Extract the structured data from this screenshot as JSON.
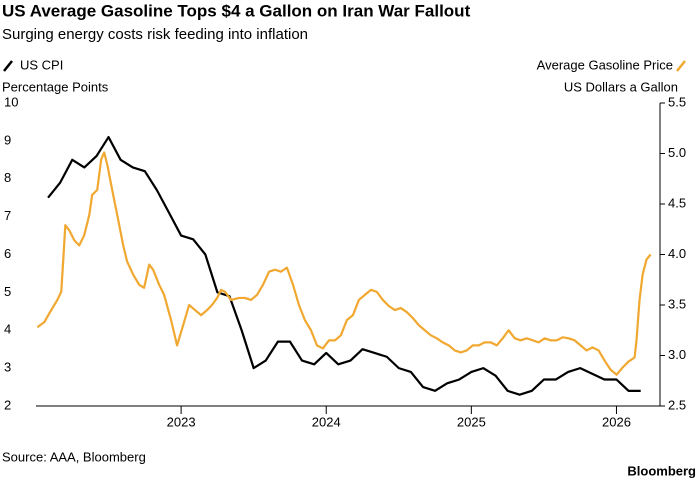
{
  "chart_data": {
    "type": "line",
    "title": "US Average Gasoline Tops $4 a Gallon on Iran War Fallout",
    "subtitle": "Surging energy costs risk feeding into inflation",
    "y_label": "Percentage Points",
    "y2_label": "US Dollars a Gallon",
    "source": "Source: AAA, Bloomberg",
    "brand": "Bloomberg",
    "xlim": [
      2022,
      2026.3
    ],
    "xticks": [
      2023,
      2024,
      2025,
      2026
    ],
    "ylim": [
      2,
      10
    ],
    "yticks": [
      2,
      3,
      4,
      5,
      6,
      7,
      8,
      9,
      10
    ],
    "y2lim": [
      2.5,
      5.5
    ],
    "y2ticks": [
      2.5,
      {
        "value": 3,
        "label": "3.0"
      },
      3.5,
      {
        "value": 4,
        "label": "4.0"
      },
      4.5,
      {
        "value": 5,
        "label": "5.0"
      },
      5.5
    ],
    "series": [
      {
        "name": "US CPI",
        "color": "#000000",
        "x": [
          2022.083,
          2022.167,
          2022.25,
          2022.333,
          2022.417,
          2022.5,
          2022.583,
          2022.667,
          2022.75,
          2022.833,
          2022.917,
          2023.0,
          2023.083,
          2023.167,
          2023.25,
          2023.333,
          2023.417,
          2023.5,
          2023.583,
          2023.667,
          2023.75,
          2023.833,
          2023.917,
          2024.0,
          2024.083,
          2024.167,
          2024.25,
          2024.333,
          2024.417,
          2024.5,
          2024.583,
          2024.667,
          2024.75,
          2024.833,
          2024.917,
          2025.0,
          2025.083,
          2025.167,
          2025.25,
          2025.333,
          2025.417,
          2025.5,
          2025.583,
          2025.667,
          2025.75,
          2025.917,
          2026.0,
          2026.083,
          2026.167
        ],
        "values": [
          7.5,
          7.9,
          8.5,
          8.3,
          8.6,
          9.1,
          8.5,
          8.3,
          8.2,
          7.7,
          7.1,
          6.5,
          6.4,
          6.0,
          5.0,
          4.9,
          4.0,
          3.0,
          3.2,
          3.7,
          3.7,
          3.2,
          3.1,
          3.4,
          3.1,
          3.2,
          3.5,
          3.4,
          3.3,
          3.0,
          2.9,
          2.5,
          2.4,
          2.6,
          2.7,
          2.9,
          3.0,
          2.8,
          2.4,
          2.3,
          2.4,
          2.7,
          2.7,
          2.9,
          3.0,
          2.7,
          2.7,
          2.4,
          2.4
        ]
      },
      {
        "name": "Average Gasoline Price",
        "color": "#f0a830",
        "axis": "y2",
        "x": [
          2022.009,
          2022.057,
          2022.105,
          2022.147,
          2022.174,
          2022.188,
          2022.202,
          2022.229,
          2022.264,
          2022.298,
          2022.332,
          2022.367,
          2022.387,
          2022.422,
          2022.449,
          2022.47,
          2022.491,
          2022.525,
          2022.56,
          2022.601,
          2022.628,
          2022.67,
          2022.711,
          2022.745,
          2022.78,
          2022.807,
          2022.849,
          2022.883,
          2022.931,
          2022.972,
          2023.014,
          2023.055,
          2023.096,
          2023.138,
          2023.179,
          2023.213,
          2023.248,
          2023.275,
          2023.303,
          2023.344,
          2023.399,
          2023.44,
          2023.482,
          2023.523,
          2023.564,
          2023.606,
          2023.647,
          2023.688,
          2023.729,
          2023.771,
          2023.812,
          2023.853,
          2023.895,
          2023.936,
          2023.977,
          2024.019,
          2024.06,
          2024.101,
          2024.142,
          2024.184,
          2024.225,
          2024.266,
          2024.308,
          2024.349,
          2024.39,
          2024.431,
          2024.473,
          2024.514,
          2024.555,
          2024.597,
          2024.638,
          2024.679,
          2024.721,
          2024.762,
          2024.803,
          2024.844,
          2024.886,
          2024.927,
          2024.968,
          2025.01,
          2025.051,
          2025.092,
          2025.134,
          2025.175,
          2025.216,
          2025.257,
          2025.299,
          2025.34,
          2025.381,
          2025.423,
          2025.464,
          2025.505,
          2025.546,
          2025.588,
          2025.629,
          2025.67,
          2025.712,
          2025.753,
          2025.794,
          2025.836,
          2025.877,
          2025.918,
          2025.959,
          2026.001,
          2026.042,
          2026.083,
          2026.125,
          2026.138,
          2026.159,
          2026.18,
          2026.207,
          2026.235
        ],
        "values": [
          3.28,
          3.33,
          3.45,
          3.55,
          3.63,
          3.95,
          4.29,
          4.24,
          4.14,
          4.09,
          4.19,
          4.39,
          4.59,
          4.64,
          4.94,
          5.01,
          4.89,
          4.64,
          4.39,
          4.09,
          3.93,
          3.8,
          3.7,
          3.67,
          3.9,
          3.85,
          3.7,
          3.6,
          3.35,
          3.1,
          3.3,
          3.5,
          3.45,
          3.4,
          3.45,
          3.5,
          3.57,
          3.65,
          3.63,
          3.55,
          3.57,
          3.57,
          3.55,
          3.6,
          3.7,
          3.83,
          3.85,
          3.83,
          3.87,
          3.7,
          3.5,
          3.35,
          3.25,
          3.1,
          3.07,
          3.15,
          3.15,
          3.2,
          3.35,
          3.4,
          3.55,
          3.6,
          3.65,
          3.63,
          3.55,
          3.49,
          3.45,
          3.47,
          3.43,
          3.37,
          3.3,
          3.25,
          3.2,
          3.17,
          3.13,
          3.1,
          3.05,
          3.03,
          3.05,
          3.1,
          3.1,
          3.13,
          3.13,
          3.1,
          3.17,
          3.25,
          3.17,
          3.15,
          3.17,
          3.15,
          3.13,
          3.17,
          3.15,
          3.15,
          3.18,
          3.17,
          3.15,
          3.1,
          3.05,
          3.08,
          3.05,
          2.95,
          2.86,
          2.81,
          2.88,
          2.94,
          2.98,
          3.15,
          3.55,
          3.8,
          3.95,
          4.0
        ]
      }
    ]
  }
}
